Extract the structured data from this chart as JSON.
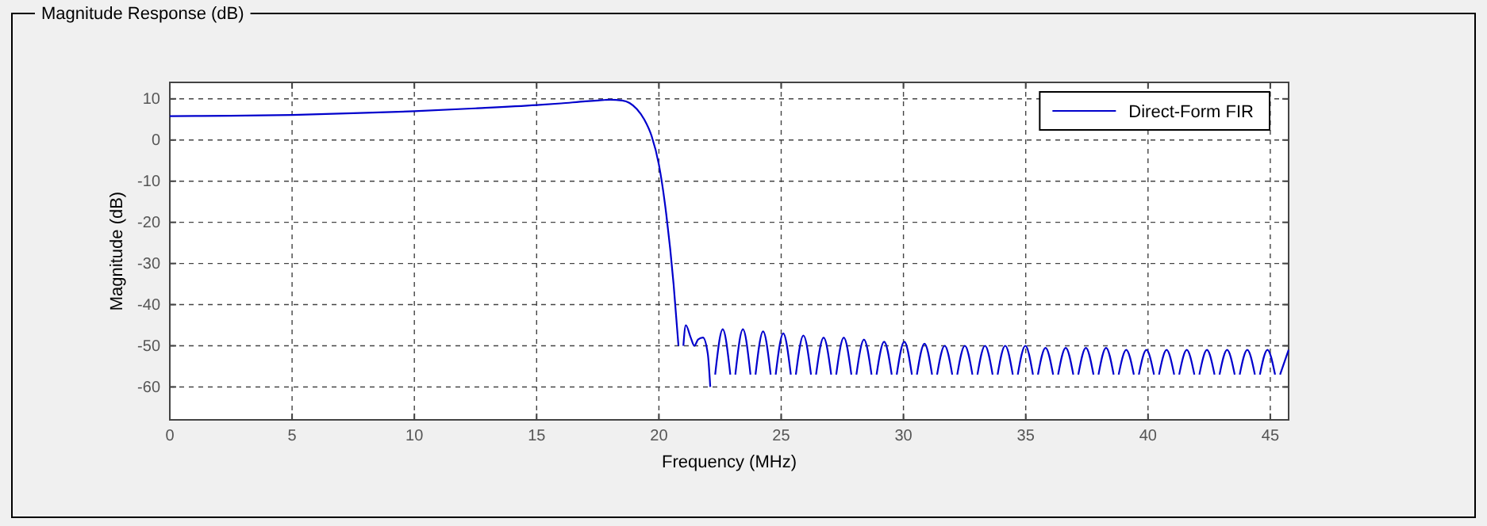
{
  "chart_data": {
    "type": "line",
    "title": "Magnitude Response (dB)",
    "xlabel": "Frequency (MHz)",
    "ylabel": "Magnitude (dB)",
    "xlim": [
      0,
      45.75
    ],
    "xticks": [
      0,
      5,
      10,
      15,
      20,
      25,
      30,
      35,
      40,
      45
    ],
    "ylim": [
      -68,
      14
    ],
    "yticks": [
      -60,
      -50,
      -40,
      -30,
      -20,
      -10,
      0,
      10
    ],
    "grid": true,
    "legend": "top right",
    "line_style": "solid",
    "series": [
      {
        "name": "Direct-Form FIR",
        "color": "#0000cc",
        "x": [
          0,
          2.5,
          5,
          7.5,
          10,
          12.5,
          15,
          16,
          17,
          17.5,
          18,
          18.5,
          18.8,
          19.1,
          19.4,
          19.7,
          20,
          20.3,
          20.6,
          20.8,
          20.85,
          21.0,
          21.1,
          21.3,
          21.45,
          21.6,
          21.8,
          22.0,
          22.1,
          22.2,
          22.3,
          22.61,
          22.92,
          23.025,
          23.125,
          23.435,
          23.745,
          23.85,
          23.95,
          24.26,
          24.57,
          24.675,
          24.775,
          25.085,
          25.395,
          25.5,
          25.6,
          25.91,
          26.22,
          26.325,
          26.425,
          26.735,
          27.045,
          27.15,
          27.25,
          27.56,
          27.87,
          27.975,
          28.075,
          28.385,
          28.695,
          28.8,
          28.9,
          29.21,
          29.52,
          29.625,
          29.725,
          30.035,
          30.345,
          30.45,
          30.55,
          30.86,
          31.17,
          31.275,
          31.375,
          31.685,
          31.995,
          32.1,
          32.2,
          32.51,
          32.82,
          32.925,
          33.025,
          33.335,
          33.645,
          33.75,
          33.85,
          34.16,
          34.47,
          34.575,
          34.675,
          34.985,
          35.295,
          35.4,
          35.5,
          35.81,
          36.12,
          36.225,
          36.325,
          36.635,
          36.945,
          37.05,
          37.15,
          37.46,
          37.77,
          37.875,
          37.975,
          38.285,
          38.595,
          38.7,
          38.8,
          39.11,
          39.42,
          39.525,
          39.625,
          39.935,
          40.245,
          40.35,
          40.45,
          40.76,
          41.07,
          41.175,
          41.275,
          41.585,
          41.895,
          42.0,
          42.1,
          42.41,
          42.72,
          42.825,
          42.925,
          43.235,
          43.545,
          43.65,
          43.75,
          44.06,
          44.37,
          44.475,
          44.575,
          44.885,
          45.195,
          45.3,
          45.4,
          45.75
        ],
        "values": [
          5.8,
          5.9,
          6.1,
          6.5,
          7,
          7.7,
          8.5,
          8.9,
          9.4,
          9.6,
          9.8,
          9.6,
          9.0,
          7.5,
          5,
          1,
          -6,
          -18,
          -35,
          -50,
          null,
          -50,
          -45,
          -48,
          -50,
          -48.5,
          -48,
          -52,
          -60,
          null,
          -57,
          -46,
          -57,
          null,
          -57,
          -46,
          -57,
          null,
          -57,
          -46.5,
          -57,
          null,
          -57,
          -47,
          -57,
          null,
          -57,
          -47.5,
          -57,
          null,
          -57,
          -48,
          -57,
          null,
          -57,
          -48,
          -57,
          null,
          -57,
          -48.5,
          -57,
          null,
          -57,
          -49,
          -57,
          null,
          -57,
          -49,
          -57,
          null,
          -57,
          -49.5,
          -57,
          null,
          -57,
          -50,
          -57,
          null,
          -57,
          -50,
          -57,
          null,
          -57,
          -50,
          -57,
          null,
          -57,
          -50,
          -57,
          null,
          -57,
          -50,
          -57,
          null,
          -57,
          -50.5,
          -57,
          null,
          -57,
          -50.5,
          -57,
          null,
          -57,
          -50.5,
          -57,
          null,
          -57,
          -50.5,
          -57,
          null,
          -57,
          -51,
          -57,
          null,
          -57,
          -51,
          -57,
          null,
          -57,
          -51,
          -57,
          null,
          -57,
          -51,
          -57,
          null,
          -57,
          -51,
          -57,
          null,
          -57,
          -51,
          -57,
          null,
          -57,
          -51,
          -57,
          null,
          -57,
          -51,
          -57,
          null,
          -57,
          -51
        ]
      }
    ]
  }
}
